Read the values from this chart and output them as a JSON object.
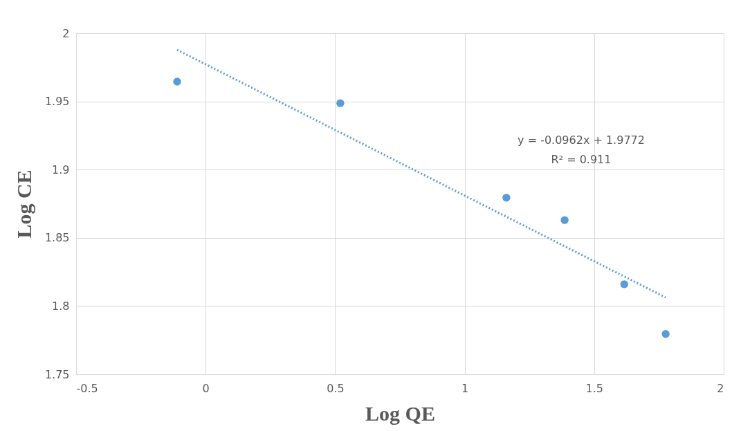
{
  "chart_data": {
    "type": "scatter",
    "xlabel": "Log QE",
    "ylabel": "Log CE",
    "series": [
      {
        "color": "#5b9bd5",
        "marker": "circle",
        "x": [
          -0.11,
          0.52,
          1.161,
          1.386,
          1.616,
          1.776
        ],
        "values": [
          1.9645,
          1.9487,
          1.8794,
          1.863,
          1.816,
          1.7795
        ]
      },
      {
        "type": "line",
        "color": "#5b9bd5",
        "x": [
          -0.11,
          1.776
        ],
        "values": [
          1.9878,
          1.8063
        ],
        "line_style": "dotted",
        "marker": "none"
      }
    ],
    "annotations": [
      "y = -0.0962x + 1.9772",
      "R² = 0.911"
    ],
    "xlim": [
      -0.5,
      2
    ],
    "xticks": [
      -0.5,
      0,
      0.5,
      1,
      1.5,
      2
    ],
    "ylim": [
      1.75,
      2
    ],
    "yticks": [
      1.75,
      1.8,
      1.85,
      1.9,
      1.95,
      2
    ],
    "grid": true
  }
}
